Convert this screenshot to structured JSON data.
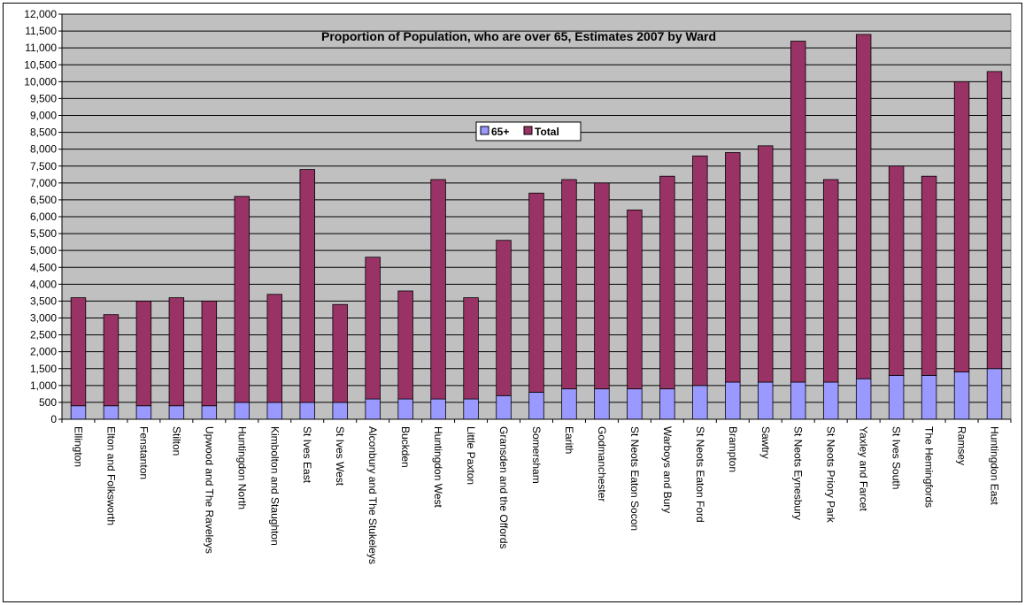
{
  "chart_data": {
    "type": "bar",
    "stacked": true,
    "title": "Proportion of Population, who are over 65, Estimates 2007 by Ward",
    "xlabel": "",
    "ylabel": "",
    "ylim": [
      0,
      12000
    ],
    "ytick_step": 500,
    "grid": true,
    "legend_position": "center",
    "plot_background": "#c0c0c0",
    "categories": [
      "Ellington",
      "Elton and Folksworth",
      "Fenstanton",
      "Stilton",
      "Upwood and The Raveleys",
      "Huntingdon North",
      "Kimbolton and Staughton",
      "St Ives East",
      "St Ives West",
      "Alconbury and The Stukeleys",
      "Buckden",
      "Huntingdon West",
      "Little Paxton",
      "Gransden and the Offords",
      "Somersham",
      "Earith",
      "Godmanchester",
      "St Neots Eaton Socon",
      "Warboys and Bury",
      "St Neots Eaton Ford",
      "Brampton",
      "Sawtry",
      "St Neots Eynesbury",
      "St Neots Priory Park",
      "Yaxley and Farcet",
      "St Ives South",
      "The Hemingfords",
      "Ramsey",
      "Huntingdon East"
    ],
    "series": [
      {
        "name": "65+",
        "color": "#9999ff",
        "values": [
          400,
          400,
          400,
          400,
          400,
          500,
          500,
          500,
          500,
          600,
          600,
          600,
          600,
          700,
          800,
          900,
          900,
          900,
          900,
          1000,
          1100,
          1100,
          1100,
          1100,
          1200,
          1300,
          1300,
          1400,
          1500
        ]
      },
      {
        "name": "Total",
        "color": "#993366",
        "values": [
          3200,
          2700,
          3100,
          3200,
          3100,
          6100,
          3200,
          6900,
          2900,
          4200,
          3200,
          6500,
          3000,
          4600,
          5900,
          6200,
          6100,
          5300,
          6300,
          6800,
          6800,
          7000,
          10100,
          6000,
          10200,
          6200,
          5900,
          8600,
          8800
        ]
      }
    ]
  }
}
